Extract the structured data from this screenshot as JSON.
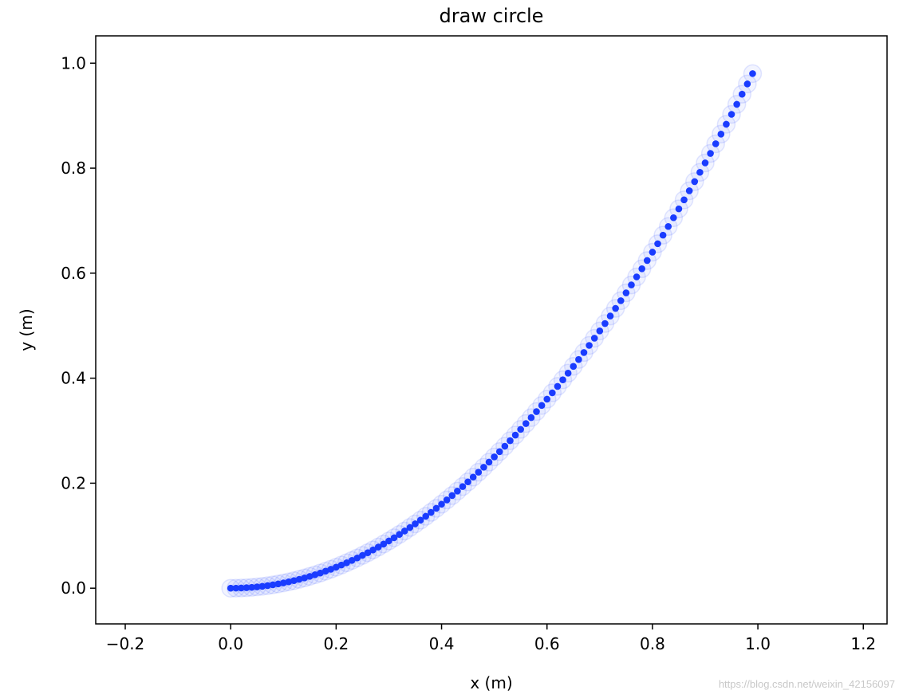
{
  "chart_data": {
    "type": "scatter",
    "title": "draw circle",
    "xlabel": "x (m)",
    "ylabel": "y (m)",
    "xlim": [
      -0.256,
      1.245
    ],
    "ylim": [
      -0.068,
      1.052
    ],
    "xticks": [
      "−0.2",
      "0.0",
      "0.2",
      "0.4",
      "0.6",
      "0.8",
      "1.0",
      "1.2"
    ],
    "xtick_values": [
      -0.2,
      0,
      0.2,
      0.4,
      0.6,
      0.8,
      1.0,
      1.2
    ],
    "yticks": [
      "0.0",
      "0.2",
      "0.4",
      "0.6",
      "0.8",
      "1.0"
    ],
    "ytick_values": [
      0,
      0.2,
      0.4,
      0.6,
      0.8,
      1.0
    ],
    "grid": false,
    "marker_color": "#1a3cff",
    "halo_color": "#1a3cff",
    "x": [
      0,
      0.01,
      0.02,
      0.03,
      0.04,
      0.05,
      0.06,
      0.07,
      0.08,
      0.09,
      0.1,
      0.11,
      0.12,
      0.13,
      0.14,
      0.15,
      0.16,
      0.17,
      0.18,
      0.19,
      0.2,
      0.21,
      0.22,
      0.23,
      0.24,
      0.25,
      0.26,
      0.27,
      0.28,
      0.29,
      0.3,
      0.31,
      0.32,
      0.33,
      0.34,
      0.35,
      0.36,
      0.37,
      0.38,
      0.39,
      0.4,
      0.41,
      0.42,
      0.43,
      0.44,
      0.45,
      0.46,
      0.47,
      0.48,
      0.49,
      0.5,
      0.51,
      0.52,
      0.53,
      0.54,
      0.55,
      0.56,
      0.57,
      0.58,
      0.59,
      0.6,
      0.61,
      0.62,
      0.63,
      0.64,
      0.65,
      0.66,
      0.67,
      0.68,
      0.69,
      0.7,
      0.71,
      0.72,
      0.73,
      0.74,
      0.75,
      0.76,
      0.77,
      0.78,
      0.79,
      0.8,
      0.81,
      0.82,
      0.83,
      0.84,
      0.85,
      0.86,
      0.87,
      0.88,
      0.89,
      0.9,
      0.91,
      0.92,
      0.93,
      0.94,
      0.95,
      0.96,
      0.97,
      0.98,
      0.99
    ],
    "y": [
      0,
      0.0001,
      0.0004,
      0.0009,
      0.0016,
      0.0025,
      0.0036,
      0.0049,
      0.0064,
      0.0081,
      0.01,
      0.0121,
      0.0144,
      0.0169,
      0.0196,
      0.0225,
      0.0256,
      0.0289,
      0.0324,
      0.0361,
      0.04,
      0.0441,
      0.0484,
      0.0529,
      0.0576,
      0.0625,
      0.0676,
      0.0729,
      0.0784,
      0.0841,
      0.09,
      0.0961,
      0.1024,
      0.1089,
      0.1156,
      0.1225,
      0.1296,
      0.1369,
      0.1444,
      0.1521,
      0.16,
      0.1681,
      0.1764,
      0.1849,
      0.1936,
      0.2025,
      0.2116,
      0.2209,
      0.2304,
      0.2401,
      0.25,
      0.2601,
      0.2704,
      0.2809,
      0.2916,
      0.3025,
      0.3136,
      0.3249,
      0.3364,
      0.3481,
      0.36,
      0.3721,
      0.3844,
      0.3969,
      0.4096,
      0.4225,
      0.4356,
      0.4489,
      0.4624,
      0.4761,
      0.49,
      0.5041,
      0.5184,
      0.5329,
      0.5476,
      0.5625,
      0.5776,
      0.5929,
      0.6084,
      0.6241,
      0.64,
      0.6561,
      0.6724,
      0.6889,
      0.7056,
      0.7225,
      0.7396,
      0.7569,
      0.7744,
      0.7921,
      0.81,
      0.8281,
      0.8464,
      0.8649,
      0.8836,
      0.9025,
      0.9216,
      0.9409,
      0.9604,
      0.9801
    ]
  },
  "watermark": "https://blog.csdn.net/weixin_42156097"
}
